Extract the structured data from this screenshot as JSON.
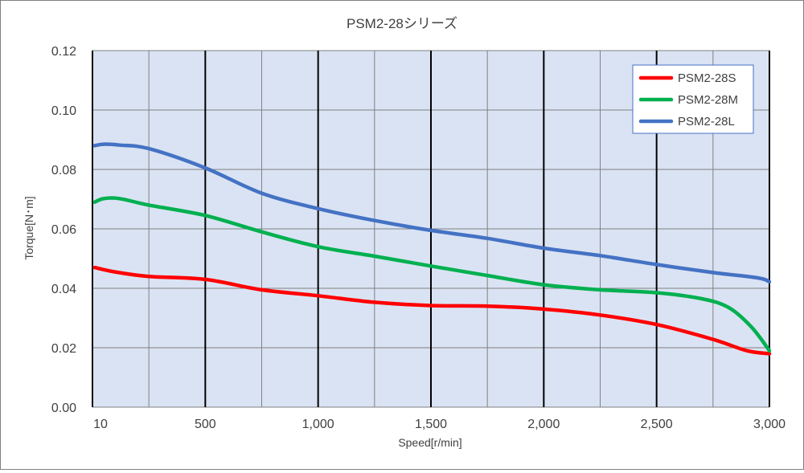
{
  "chart_data": {
    "type": "line",
    "title": "PSM2-28シリーズ",
    "xlabel": "Speed[r/min]",
    "ylabel": "Torque[N･m]",
    "xlim": [
      0,
      3000
    ],
    "ylim": [
      0,
      0.12
    ],
    "x_ticks": [
      10,
      500,
      1000,
      1500,
      2000,
      2500,
      3000
    ],
    "x_tick_labels": [
      "10",
      "500",
      "1,000",
      "1,500",
      "2,000",
      "2,500",
      "3,000"
    ],
    "y_ticks": [
      0,
      0.02,
      0.04,
      0.06,
      0.08,
      0.1,
      0.12
    ],
    "y_tick_labels": [
      "0.00",
      "0.02",
      "0.04",
      "0.06",
      "0.08",
      "0.10",
      "0.12"
    ],
    "grid": true,
    "legend": "top-right",
    "plot_background": "#dae3f3",
    "series": [
      {
        "name": "PSM2-28S",
        "color": "#ff0000",
        "x": [
          10,
          100,
          250,
          500,
          750,
          1000,
          1250,
          1500,
          1750,
          2000,
          2250,
          2500,
          2750,
          2900,
          3000
        ],
        "y": [
          0.047,
          0.0455,
          0.044,
          0.043,
          0.0395,
          0.0375,
          0.0353,
          0.0342,
          0.034,
          0.033,
          0.031,
          0.0278,
          0.0228,
          0.019,
          0.018
        ]
      },
      {
        "name": "PSM2-28M",
        "color": "#00b050",
        "x": [
          10,
          50,
          120,
          250,
          500,
          750,
          1000,
          1250,
          1500,
          1750,
          2000,
          2250,
          2500,
          2700,
          2820,
          2920,
          3000
        ],
        "y": [
          0.069,
          0.0702,
          0.0702,
          0.068,
          0.0645,
          0.059,
          0.054,
          0.0508,
          0.0475,
          0.0443,
          0.0412,
          0.0395,
          0.0385,
          0.0365,
          0.0335,
          0.027,
          0.019
        ]
      },
      {
        "name": "PSM2-28L",
        "color": "#4472c4",
        "x": [
          10,
          50,
          120,
          250,
          500,
          750,
          1000,
          1250,
          1500,
          1750,
          2000,
          2250,
          2500,
          2750,
          2950,
          3000
        ],
        "y": [
          0.088,
          0.0885,
          0.0882,
          0.087,
          0.0805,
          0.072,
          0.0668,
          0.0628,
          0.0595,
          0.0568,
          0.0535,
          0.051,
          0.048,
          0.0453,
          0.0435,
          0.0422
        ]
      }
    ]
  }
}
